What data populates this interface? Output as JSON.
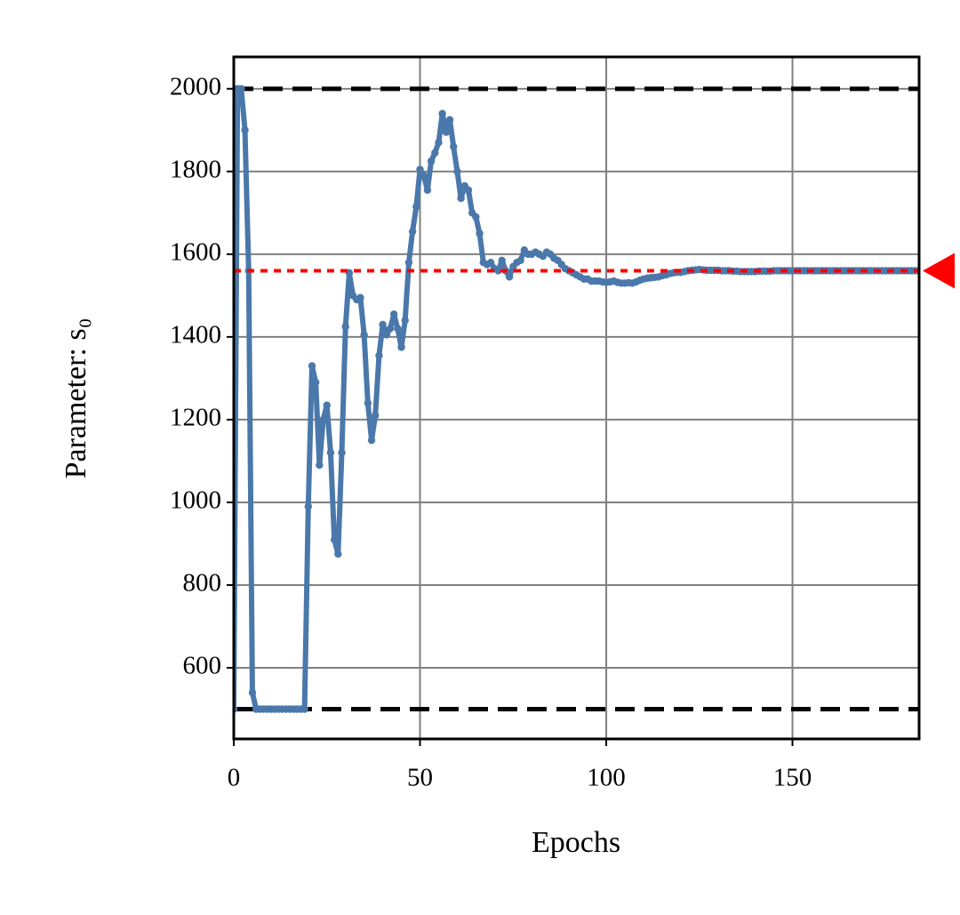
{
  "chart_data": {
    "type": "line",
    "xlabel": "Epochs",
    "ylabel": "Parameter: s₀",
    "xlim": [
      0,
      184
    ],
    "ylim": [
      428,
      2077
    ],
    "xticks": [
      0,
      50,
      100,
      150
    ],
    "yticks": [
      600,
      800,
      1000,
      1200,
      1400,
      1600,
      1800,
      2000
    ],
    "grid": true,
    "bounds": [
      500,
      2000
    ],
    "bounds_color": "#000000",
    "target": 1560,
    "target_color": "#ff0000",
    "series": [
      {
        "color": "#4a78ab",
        "x": [
          0,
          1,
          2,
          3,
          4,
          5,
          6,
          7,
          8,
          9,
          10,
          11,
          12,
          13,
          14,
          15,
          16,
          17,
          18,
          19,
          20,
          21,
          22,
          23,
          24,
          25,
          26,
          27,
          28,
          29,
          30,
          31,
          32,
          33,
          34,
          35,
          36,
          37,
          38,
          39,
          40,
          41,
          42,
          43,
          44,
          45,
          46,
          47,
          48,
          49,
          50,
          51,
          52,
          53,
          54,
          55,
          56,
          57,
          58,
          59,
          60,
          61,
          62,
          63,
          64,
          65,
          66,
          67,
          68,
          69,
          70,
          71,
          72,
          73,
          74,
          75,
          76,
          77,
          78,
          79,
          80,
          81,
          82,
          83,
          84,
          85,
          86,
          87,
          88,
          89,
          90,
          91,
          92,
          93,
          94,
          95,
          96,
          97,
          98,
          99,
          100,
          101,
          102,
          103,
          104,
          105,
          106,
          107,
          108,
          109,
          110,
          111,
          112,
          113,
          114,
          115,
          116,
          117,
          118,
          119,
          120,
          121,
          122,
          123,
          124,
          125,
          126,
          127,
          128,
          129,
          130,
          131,
          132,
          133,
          134,
          135,
          136,
          137,
          138,
          139,
          140,
          141,
          142,
          143,
          144,
          145,
          146,
          147,
          148,
          149,
          150,
          151,
          152,
          153,
          154,
          155,
          156,
          157,
          158,
          159,
          160,
          161,
          162,
          163,
          164,
          165,
          166,
          167,
          168,
          169,
          170,
          171,
          172,
          173,
          174,
          175,
          176,
          177,
          178,
          179,
          180,
          181,
          182,
          183,
          184
        ],
        "values": [
          500,
          2000,
          2000,
          1900,
          1560,
          540,
          500,
          500,
          500,
          500,
          500,
          500,
          500,
          500,
          500,
          500,
          500,
          500,
          500,
          500,
          990,
          1330,
          1290,
          1090,
          1200,
          1235,
          1120,
          910,
          875,
          1120,
          1425,
          1555,
          1500,
          1490,
          1495,
          1405,
          1240,
          1150,
          1210,
          1355,
          1430,
          1405,
          1420,
          1455,
          1420,
          1375,
          1440,
          1580,
          1655,
          1715,
          1805,
          1790,
          1755,
          1825,
          1845,
          1870,
          1940,
          1895,
          1925,
          1860,
          1800,
          1735,
          1765,
          1755,
          1700,
          1690,
          1650,
          1580,
          1575,
          1580,
          1565,
          1560,
          1585,
          1560,
          1545,
          1570,
          1580,
          1585,
          1610,
          1600,
          1600,
          1605,
          1600,
          1595,
          1605,
          1600,
          1590,
          1585,
          1575,
          1565,
          1560,
          1555,
          1550,
          1545,
          1540,
          1540,
          1535,
          1535,
          1535,
          1533,
          1532,
          1533,
          1535,
          1532,
          1530,
          1530,
          1531,
          1530,
          1533,
          1537,
          1540,
          1542,
          1543,
          1544,
          1545,
          1548,
          1550,
          1553,
          1555,
          1556,
          1556,
          1558,
          1560,
          1561,
          1562,
          1563,
          1562,
          1561,
          1561,
          1561,
          1561,
          1560,
          1560,
          1560,
          1559,
          1559,
          1558,
          1558,
          1558,
          1558,
          1558,
          1559,
          1559,
          1559,
          1559,
          1560,
          1560,
          1560,
          1560,
          1560,
          1560,
          1560,
          1560,
          1560,
          1560,
          1560,
          1560,
          1560,
          1560,
          1560,
          1560,
          1560,
          1560,
          1560,
          1560,
          1560,
          1560,
          1560,
          1560,
          1560,
          1560,
          1560,
          1560,
          1560,
          1560,
          1560,
          1560,
          1560,
          1560,
          1560,
          1560,
          1560,
          1560,
          1560,
          1560
        ]
      }
    ]
  }
}
